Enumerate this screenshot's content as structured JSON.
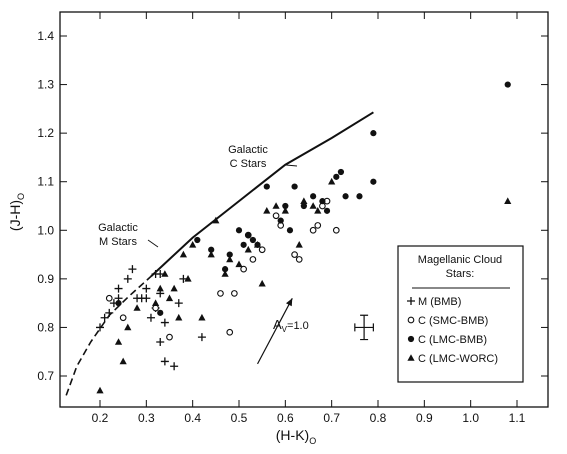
{
  "chart_data": {
    "type": "scatter",
    "title": "",
    "xlabel": "(H-K)",
    "xlabel_sub": "O",
    "ylabel": "(J-H)",
    "ylabel_sub": "O",
    "xlim": [
      0.12,
      1.17
    ],
    "ylim": [
      0.63,
      1.45
    ],
    "x_ticks": [
      0.2,
      0.3,
      0.4,
      0.5,
      0.6,
      0.7,
      0.8,
      0.9,
      1.0,
      1.1
    ],
    "x_tick_labels": [
      "0.2",
      "0.3",
      "0.4",
      "0.5",
      "0.6",
      "0.7",
      "0.8",
      "0.9",
      "1.0",
      "1.1"
    ],
    "y_ticks": [
      0.7,
      0.8,
      0.9,
      1.0,
      1.1,
      1.2,
      1.3,
      1.4
    ],
    "y_tick_labels": [
      "0.7",
      "0.8",
      "0.9",
      "1.0",
      "1.1",
      "1.2",
      "1.3",
      "1.4"
    ],
    "grid": false,
    "legend": {
      "placement": "lower-right",
      "title_line1": "Magellanic Cloud",
      "title_line2": "Stars:",
      "entries": [
        {
          "symbol": "plus",
          "label": "M (BMB)"
        },
        {
          "symbol": "open-circle",
          "label": "C (SMC-BMB)"
        },
        {
          "symbol": "filled-circle",
          "label": "C (LMC-BMB)"
        },
        {
          "symbol": "triangle",
          "label": "C (LMC-WORC)"
        }
      ]
    },
    "annotations": {
      "galactic_c_line1": "Galactic",
      "galactic_c_line2": "C Stars",
      "galactic_m_line1": "Galactic",
      "galactic_m_line2": "M Stars",
      "reddening_main": "A",
      "reddening_sub": "V",
      "reddening_value": "=1.0"
    },
    "galactic_c_sequence": [
      [
        0.31,
        0.905
      ],
      [
        0.4,
        0.985
      ],
      [
        0.5,
        1.06
      ],
      [
        0.6,
        1.135
      ],
      [
        0.7,
        1.19
      ],
      [
        0.79,
        1.243
      ]
    ],
    "galactic_m_sequence": [
      [
        0.127,
        0.66
      ],
      [
        0.15,
        0.72
      ],
      [
        0.18,
        0.77
      ],
      [
        0.22,
        0.825
      ],
      [
        0.26,
        0.862
      ],
      [
        0.31,
        0.905
      ]
    ],
    "reddening_vector": {
      "from": [
        0.54,
        0.725
      ],
      "to": [
        0.615,
        0.86
      ]
    },
    "error_bar": {
      "x": 0.77,
      "y": 0.8,
      "dx": 0.02,
      "dy": 0.025
    },
    "series": [
      {
        "name": "M (BMB)",
        "symbol": "plus",
        "points": [
          [
            0.2,
            0.8
          ],
          [
            0.21,
            0.82
          ],
          [
            0.22,
            0.83
          ],
          [
            0.23,
            0.85
          ],
          [
            0.24,
            0.88
          ],
          [
            0.24,
            0.86
          ],
          [
            0.26,
            0.9
          ],
          [
            0.27,
            0.92
          ],
          [
            0.28,
            0.86
          ],
          [
            0.29,
            0.86
          ],
          [
            0.3,
            0.86
          ],
          [
            0.3,
            0.88
          ],
          [
            0.31,
            0.82
          ],
          [
            0.32,
            0.84
          ],
          [
            0.32,
            0.91
          ],
          [
            0.33,
            0.87
          ],
          [
            0.33,
            0.77
          ],
          [
            0.34,
            0.81
          ],
          [
            0.34,
            0.73
          ],
          [
            0.36,
            0.72
          ],
          [
            0.37,
            0.85
          ],
          [
            0.38,
            0.9
          ],
          [
            0.42,
            0.78
          ],
          [
            0.33,
            0.91
          ]
        ]
      },
      {
        "name": "C (SMC-BMB)",
        "symbol": "open-circle",
        "points": [
          [
            0.22,
            0.86
          ],
          [
            0.25,
            0.82
          ],
          [
            0.32,
            0.84
          ],
          [
            0.35,
            0.78
          ],
          [
            0.46,
            0.87
          ],
          [
            0.48,
            0.79
          ],
          [
            0.49,
            0.87
          ],
          [
            0.51,
            0.92
          ],
          [
            0.52,
            0.99
          ],
          [
            0.53,
            0.94
          ],
          [
            0.55,
            0.96
          ],
          [
            0.58,
            1.03
          ],
          [
            0.59,
            1.01
          ],
          [
            0.62,
            0.95
          ],
          [
            0.63,
            0.94
          ],
          [
            0.66,
            1.0
          ],
          [
            0.67,
            1.01
          ],
          [
            0.68,
            1.05
          ],
          [
            0.69,
            1.06
          ],
          [
            0.71,
            1.0
          ]
        ]
      },
      {
        "name": "C (LMC-BMB)",
        "symbol": "filled-circle",
        "points": [
          [
            0.24,
            0.85
          ],
          [
            0.33,
            0.83
          ],
          [
            0.41,
            0.98
          ],
          [
            0.44,
            0.96
          ],
          [
            0.47,
            0.92
          ],
          [
            0.48,
            0.95
          ],
          [
            0.5,
            1.0
          ],
          [
            0.51,
            0.97
          ],
          [
            0.52,
            0.99
          ],
          [
            0.53,
            0.98
          ],
          [
            0.54,
            0.97
          ],
          [
            0.56,
            1.09
          ],
          [
            0.59,
            1.02
          ],
          [
            0.6,
            1.05
          ],
          [
            0.61,
            1.0
          ],
          [
            0.62,
            1.09
          ],
          [
            0.64,
            1.05
          ],
          [
            0.66,
            1.07
          ],
          [
            0.68,
            1.06
          ],
          [
            0.69,
            1.04
          ],
          [
            0.71,
            1.11
          ],
          [
            0.72,
            1.12
          ],
          [
            0.73,
            1.07
          ],
          [
            0.76,
            1.07
          ],
          [
            0.79,
            1.2
          ],
          [
            0.79,
            1.1
          ],
          [
            1.08,
            1.3
          ]
        ]
      },
      {
        "name": "C (LMC-WORC)",
        "symbol": "triangle",
        "points": [
          [
            0.2,
            0.67
          ],
          [
            0.24,
            0.77
          ],
          [
            0.25,
            0.73
          ],
          [
            0.26,
            0.8
          ],
          [
            0.28,
            0.84
          ],
          [
            0.32,
            0.85
          ],
          [
            0.33,
            0.88
          ],
          [
            0.34,
            0.91
          ],
          [
            0.35,
            0.86
          ],
          [
            0.36,
            0.88
          ],
          [
            0.37,
            0.82
          ],
          [
            0.38,
            0.95
          ],
          [
            0.39,
            0.9
          ],
          [
            0.4,
            0.97
          ],
          [
            0.42,
            0.82
          ],
          [
            0.44,
            0.95
          ],
          [
            0.45,
            1.02
          ],
          [
            0.47,
            0.91
          ],
          [
            0.48,
            0.94
          ],
          [
            0.5,
            0.93
          ],
          [
            0.52,
            0.96
          ],
          [
            0.54,
            0.97
          ],
          [
            0.55,
            0.89
          ],
          [
            0.56,
            1.04
          ],
          [
            0.58,
            1.05
          ],
          [
            0.6,
            1.04
          ],
          [
            0.63,
            0.97
          ],
          [
            0.64,
            1.06
          ],
          [
            0.66,
            1.05
          ],
          [
            0.67,
            1.04
          ],
          [
            0.7,
            1.1
          ],
          [
            1.08,
            1.06
          ]
        ]
      }
    ]
  }
}
